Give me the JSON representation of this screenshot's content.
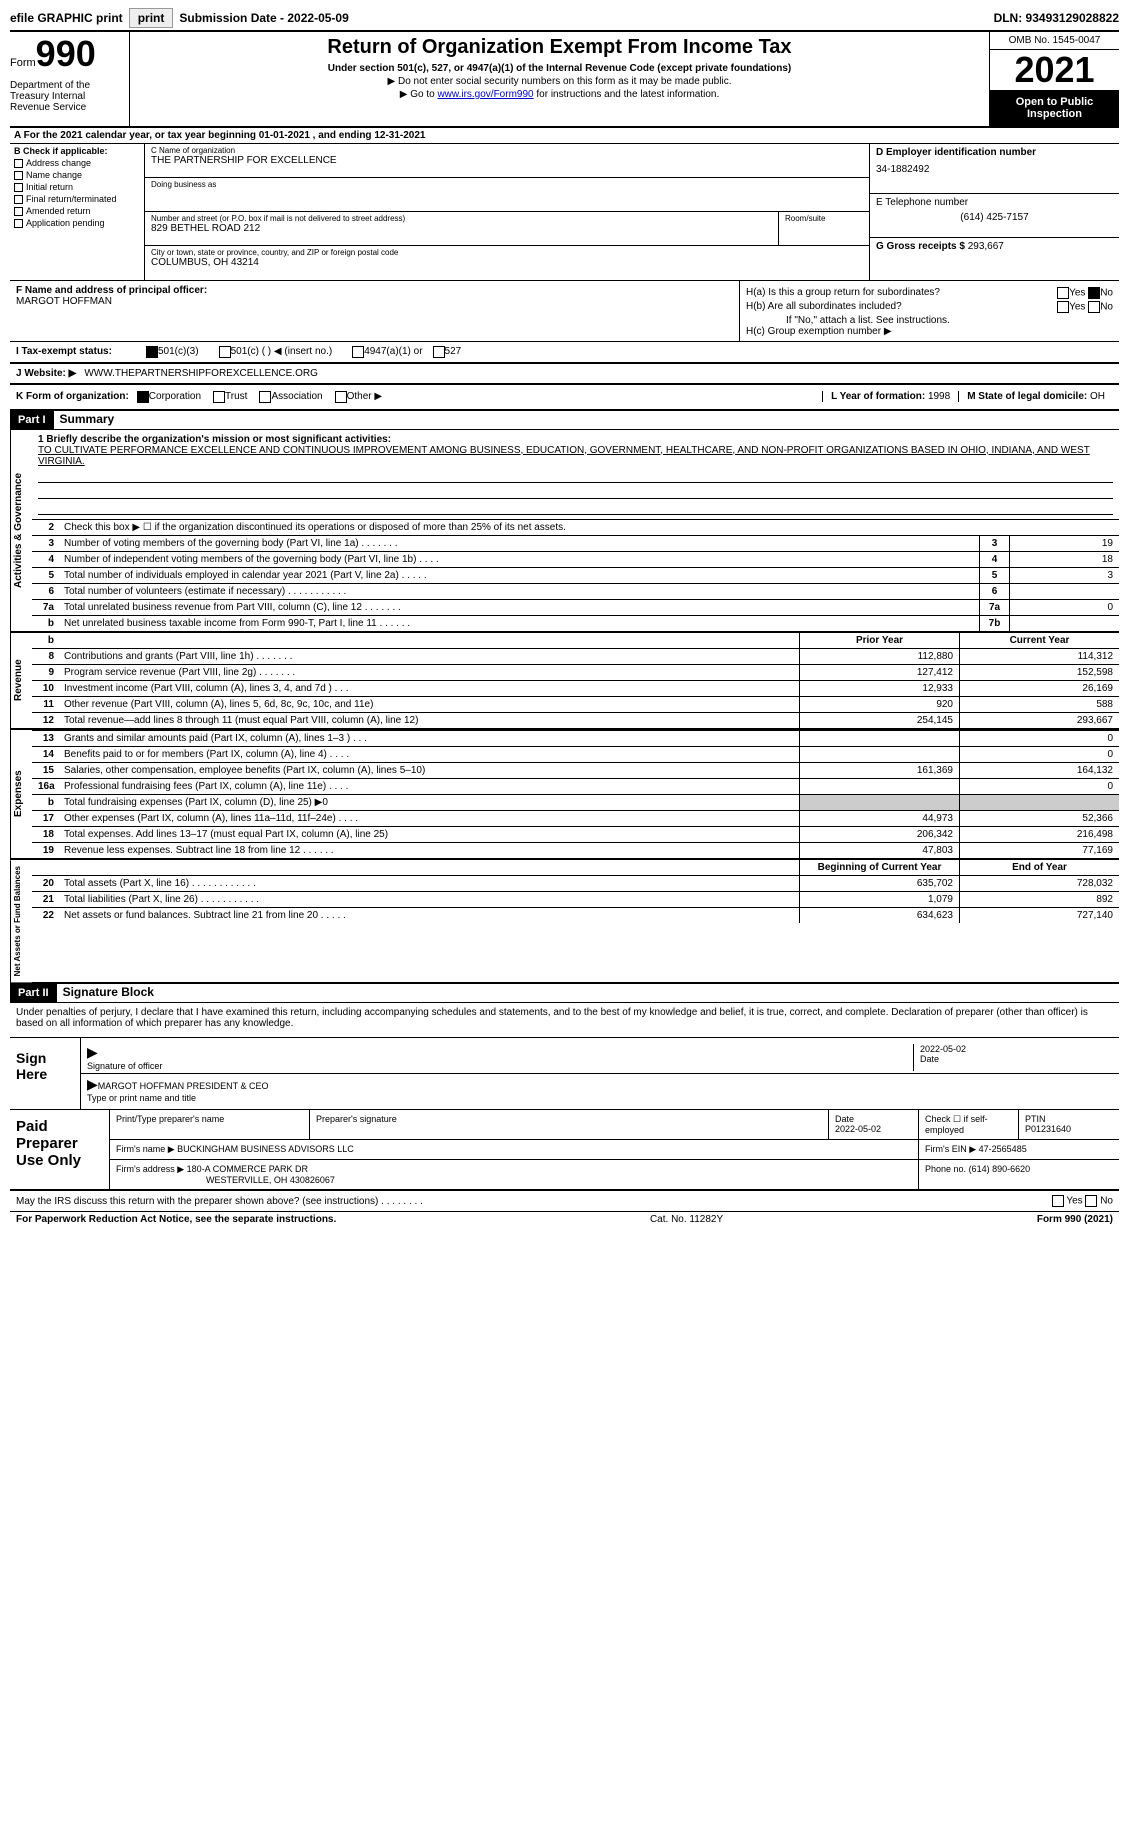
{
  "top": {
    "efile": "efile GRAPHIC print",
    "submission": "Submission Date - 2022-05-09",
    "dln": "DLN: 93493129028822"
  },
  "header": {
    "form_word": "Form",
    "form_no": "990",
    "title": "Return of Organization Exempt From Income Tax",
    "sub1": "Under section 501(c), 527, or 4947(a)(1) of the Internal Revenue Code (except private foundations)",
    "sub2a": "▶ Do not enter social security numbers on this form as it may be made public.",
    "sub2b_pre": "▶ Go to ",
    "sub2b_link": "www.irs.gov/Form990",
    "sub2b_post": " for instructions and the latest information.",
    "dept": "Department of the Treasury Internal Revenue Service",
    "omb": "OMB No. 1545-0047",
    "year": "2021",
    "open": "Open to Public Inspection"
  },
  "rowA": "A For the 2021 calendar year, or tax year beginning 01-01-2021   , and ending 12-31-2021",
  "B": {
    "label": "B Check if applicable:",
    "items": [
      "Address change",
      "Name change",
      "Initial return",
      "Final return/terminated",
      "Amended return",
      "Application pending"
    ]
  },
  "C": {
    "name_lbl": "C Name of organization",
    "name": "THE PARTNERSHIP FOR EXCELLENCE",
    "dba_lbl": "Doing business as",
    "addr_lbl": "Number and street (or P.O. box if mail is not delivered to street address)",
    "addr": "829 BETHEL ROAD 212",
    "room_lbl": "Room/suite",
    "city_lbl": "City or town, state or province, country, and ZIP or foreign postal code",
    "city": "COLUMBUS, OH  43214"
  },
  "D": {
    "lbl": "D Employer identification number",
    "val": "34-1882492"
  },
  "E": {
    "lbl": "E Telephone number",
    "val": "(614) 425-7157"
  },
  "G": {
    "lbl": "G Gross receipts $",
    "val": "293,667"
  },
  "F": {
    "lbl": "F Name and address of principal officer:",
    "val": "MARGOT HOFFMAN"
  },
  "H": {
    "a": "H(a)  Is this a group return for subordinates?",
    "b": "H(b)  Are all subordinates included?",
    "note": "If \"No,\" attach a list. See instructions.",
    "c": "H(c)  Group exemption number ▶",
    "yes": "Yes",
    "no": "No"
  },
  "I": {
    "lbl": "I   Tax-exempt status:",
    "o1": "501(c)(3)",
    "o2": "501(c) (  ) ◀ (insert no.)",
    "o3": "4947(a)(1) or",
    "o4": "527"
  },
  "J": {
    "lbl": "J   Website: ▶",
    "val": "WWW.THEPARTNERSHIPFOREXCELLENCE.ORG"
  },
  "K": {
    "lbl": "K Form of organization:",
    "o1": "Corporation",
    "o2": "Trust",
    "o3": "Association",
    "o4": "Other ▶"
  },
  "L": {
    "lbl": "L Year of formation:",
    "val": "1998"
  },
  "M": {
    "lbl": "M State of legal domicile:",
    "val": "OH"
  },
  "part1": {
    "hdr": "Part I",
    "title": "Summary"
  },
  "mission": {
    "lbl": "1  Briefly describe the organization's mission or most significant activities:",
    "text": "TO CULTIVATE PERFORMANCE EXCELLENCE AND CONTINUOUS IMPROVEMENT AMONG BUSINESS, EDUCATION, GOVERNMENT, HEALTHCARE, AND NON-PROFIT ORGANIZATIONS BASED IN OHIO, INDIANA, AND WEST VIRGINIA."
  },
  "line2": "Check this box ▶ ☐  if the organization discontinued its operations or disposed of more than 25% of its net assets.",
  "tabs": {
    "ag": "Activities & Governance",
    "rev": "Revenue",
    "exp": "Expenses",
    "na": "Net Assets or Fund Balances"
  },
  "ag_rows": [
    {
      "n": "3",
      "d": "Number of voting members of the governing body (Part VI, line 1a)   .   .   .   .   .   .   .",
      "b": "3",
      "v": "19"
    },
    {
      "n": "4",
      "d": "Number of independent voting members of the governing body (Part VI, line 1b)  .   .   .   .",
      "b": "4",
      "v": "18"
    },
    {
      "n": "5",
      "d": "Total number of individuals employed in calendar year 2021 (Part V, line 2a)  .   .   .   .   .",
      "b": "5",
      "v": "3"
    },
    {
      "n": "6",
      "d": "Total number of volunteers (estimate if necessary)   .   .   .   .   .   .   .   .   .   .   .",
      "b": "6",
      "v": ""
    },
    {
      "n": "7a",
      "d": "Total unrelated business revenue from Part VIII, column (C), line 12  .   .   .   .   .   .   .",
      "b": "7a",
      "v": "0"
    },
    {
      "n": "b",
      "d": "Net unrelated business taxable income from Form 990-T, Part I, line 11  .   .   .   .   .   .",
      "b": "7b",
      "v": ""
    }
  ],
  "rev_hdr": {
    "py": "Prior Year",
    "cy": "Current Year"
  },
  "rev_rows": [
    {
      "n": "8",
      "d": "Contributions and grants (Part VIII, line 1h)   .   .   .   .   .   .   .",
      "py": "112,880",
      "cy": "114,312"
    },
    {
      "n": "9",
      "d": "Program service revenue (Part VIII, line 2g)   .   .   .   .   .   .   .",
      "py": "127,412",
      "cy": "152,598"
    },
    {
      "n": "10",
      "d": "Investment income (Part VIII, column (A), lines 3, 4, and 7d )   .   .   .",
      "py": "12,933",
      "cy": "26,169"
    },
    {
      "n": "11",
      "d": "Other revenue (Part VIII, column (A), lines 5, 6d, 8c, 9c, 10c, and 11e)",
      "py": "920",
      "cy": "588"
    },
    {
      "n": "12",
      "d": "Total revenue—add lines 8 through 11 (must equal Part VIII, column (A), line 12)",
      "py": "254,145",
      "cy": "293,667"
    }
  ],
  "exp_rows": [
    {
      "n": "13",
      "d": "Grants and similar amounts paid (Part IX, column (A), lines 1–3 )  .   .   .",
      "py": "",
      "cy": "0"
    },
    {
      "n": "14",
      "d": "Benefits paid to or for members (Part IX, column (A), line 4)  .   .   .   .",
      "py": "",
      "cy": "0"
    },
    {
      "n": "15",
      "d": "Salaries, other compensation, employee benefits (Part IX, column (A), lines 5–10)",
      "py": "161,369",
      "cy": "164,132"
    },
    {
      "n": "16a",
      "d": "Professional fundraising fees (Part IX, column (A), line 11e)  .   .   .   .",
      "py": "",
      "cy": "0"
    },
    {
      "n": "b",
      "d": "Total fundraising expenses (Part IX, column (D), line 25) ▶0",
      "py": "shade",
      "cy": "shade"
    },
    {
      "n": "17",
      "d": "Other expenses (Part IX, column (A), lines 11a–11d, 11f–24e)  .   .   .   .",
      "py": "44,973",
      "cy": "52,366"
    },
    {
      "n": "18",
      "d": "Total expenses. Add lines 13–17 (must equal Part IX, column (A), line 25)",
      "py": "206,342",
      "cy": "216,498"
    },
    {
      "n": "19",
      "d": "Revenue less expenses. Subtract line 18 from line 12  .   .   .   .   .   .",
      "py": "47,803",
      "cy": "77,169"
    }
  ],
  "na_hdr": {
    "py": "Beginning of Current Year",
    "cy": "End of Year"
  },
  "na_rows": [
    {
      "n": "20",
      "d": "Total assets (Part X, line 16)  .   .   .   .   .   .   .   .   .   .   .   .",
      "py": "635,702",
      "cy": "728,032"
    },
    {
      "n": "21",
      "d": "Total liabilities (Part X, line 26)  .   .   .   .   .   .   .   .   .   .   .",
      "py": "1,079",
      "cy": "892"
    },
    {
      "n": "22",
      "d": "Net assets or fund balances. Subtract line 21 from line 20  .   .   .   .   .",
      "py": "634,623",
      "cy": "727,140"
    }
  ],
  "part2": {
    "hdr": "Part II",
    "title": "Signature Block"
  },
  "sig_text": "Under penalties of perjury, I declare that I have examined this return, including accompanying schedules and statements, and to the best of my knowledge and belief, it is true, correct, and complete. Declaration of preparer (other than officer) is based on all information of which preparer has any knowledge.",
  "sign": {
    "here": "Sign Here",
    "sig_lbl": "Signature of officer",
    "date": "2022-05-02",
    "date_lbl": "Date",
    "name": "MARGOT HOFFMAN  PRESIDENT & CEO",
    "name_lbl": "Type or print name and title"
  },
  "paid": {
    "title": "Paid Preparer Use Only",
    "c1": "Print/Type preparer's name",
    "c2": "Preparer's signature",
    "c3": "Date",
    "c3v": "2022-05-02",
    "c4": "Check ☐ if self-employed",
    "c5": "PTIN",
    "c5v": "P01231640",
    "firm_lbl": "Firm's name   ▶",
    "firm": "BUCKINGHAM BUSINESS ADVISORS LLC",
    "ein_lbl": "Firm's EIN ▶",
    "ein": "47-2565485",
    "addr_lbl": "Firm's address ▶",
    "addr1": "180-A COMMERCE PARK DR",
    "addr2": "WESTERVILLE, OH  430826067",
    "ph_lbl": "Phone no.",
    "ph": "(614) 890-6620"
  },
  "bottom": {
    "q": "May the IRS discuss this return with the preparer shown above? (see instructions)   .   .   .   .   .   .   .   .",
    "yes": "Yes",
    "no": "No"
  },
  "footer": {
    "l": "For Paperwork Reduction Act Notice, see the separate instructions.",
    "m": "Cat. No. 11282Y",
    "r": "Form 990 (2021)"
  }
}
